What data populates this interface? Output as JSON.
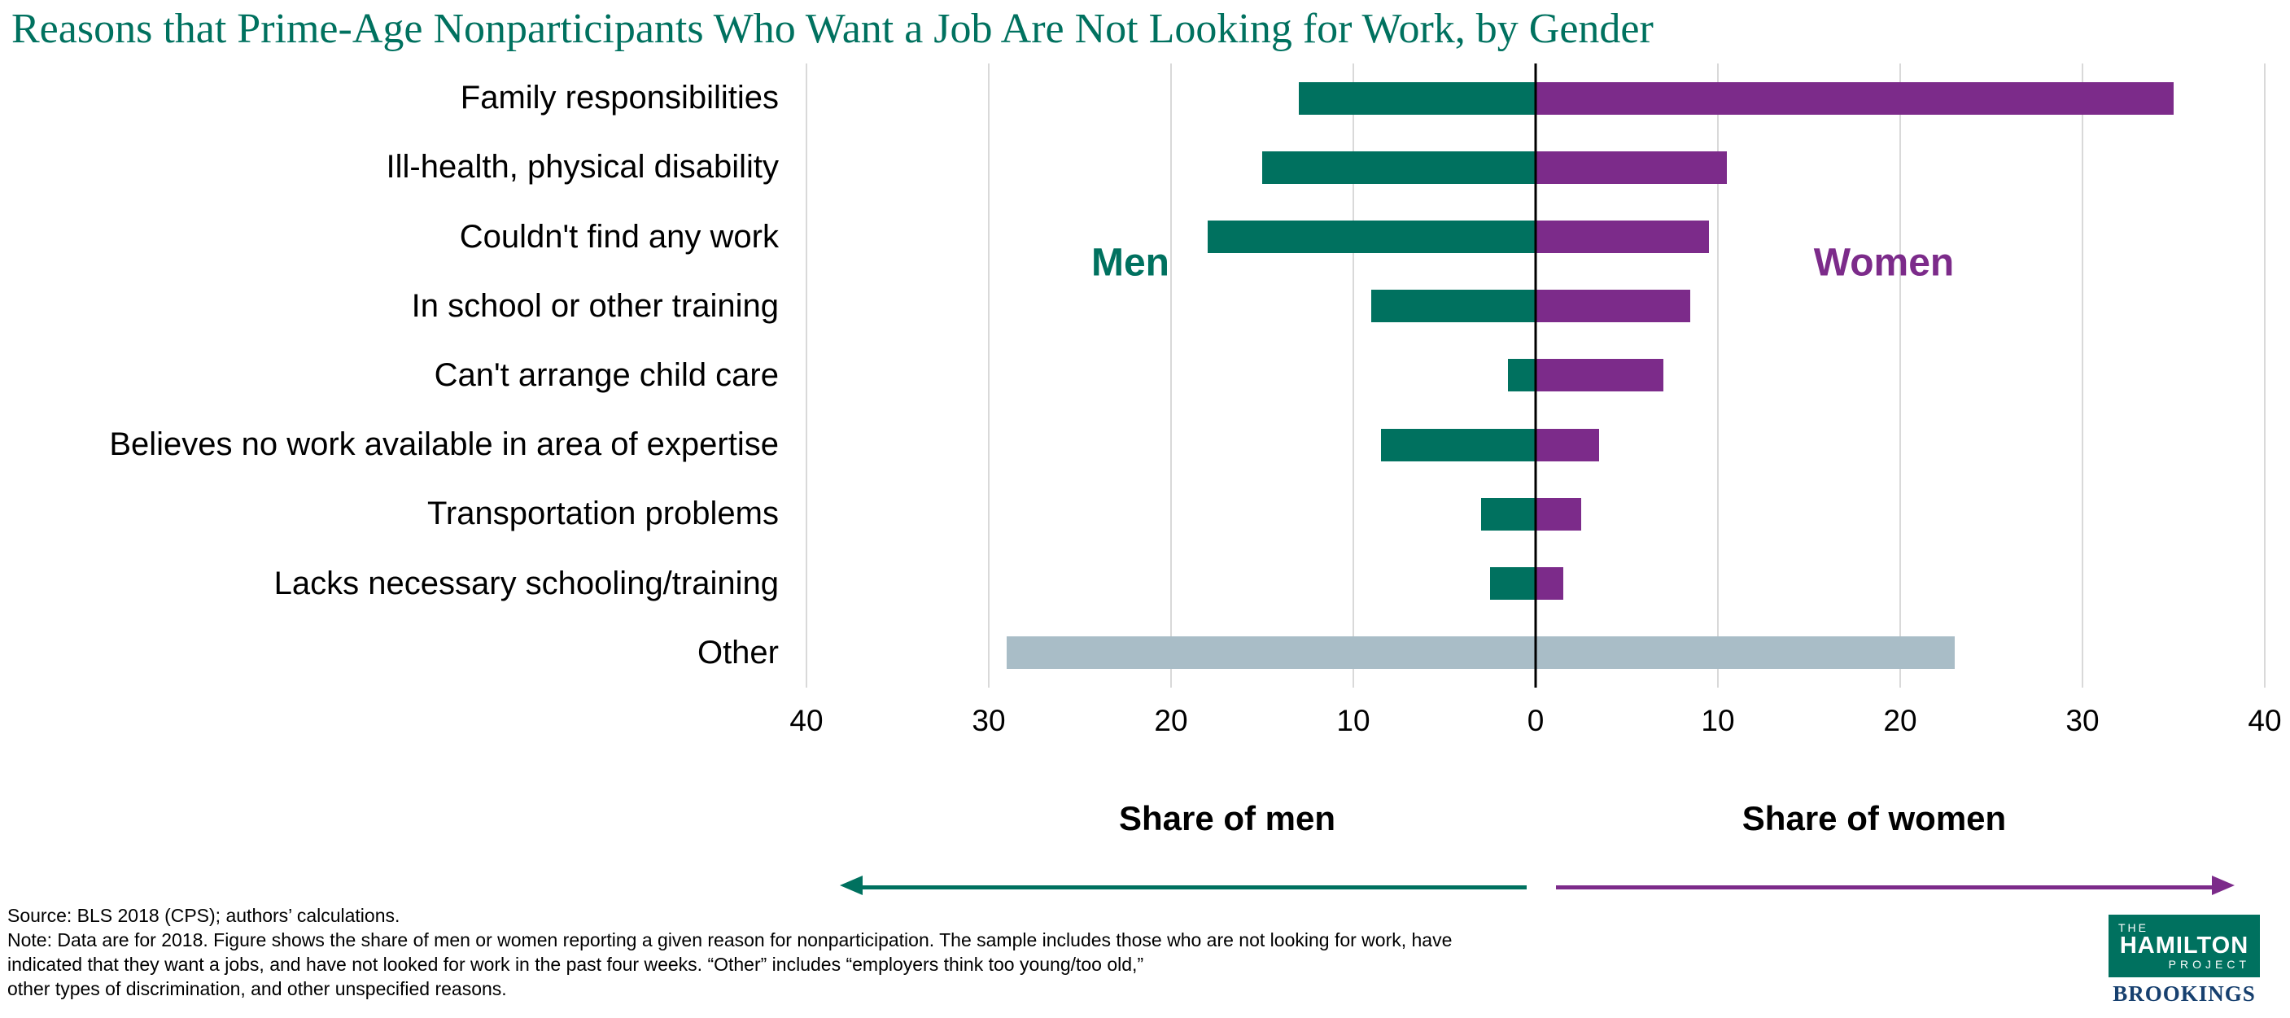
{
  "chart_data": {
    "type": "bar",
    "variant": "diverging-horizontal",
    "title": "Reasons that Prime-Age Nonparticipants Who Want a Job Are Not Looking for Work, by Gender",
    "categories": [
      "Family responsibilities",
      "Ill-health, physical disability",
      "Couldn't find any work",
      "In school or other training",
      "Can't arrange child care",
      "Believes no work available in area of expertise",
      "Transportation problems",
      "Lacks necessary schooling/training",
      "Other"
    ],
    "series": [
      {
        "name": "Men",
        "side": "left",
        "color": "#00715F",
        "values": [
          13,
          15,
          18,
          9,
          1.5,
          8.5,
          3,
          2.5,
          29
        ]
      },
      {
        "name": "Women",
        "side": "right",
        "color": "#7C2B8A",
        "values": [
          35,
          10.5,
          9.5,
          8.5,
          7,
          3.5,
          2.5,
          1.5,
          23
        ]
      }
    ],
    "other_category": {
      "index": 8,
      "color": "#A9BDC7",
      "note": "single gray bar spanning both sides (men 29 to women 23)"
    },
    "x_axis": {
      "ticks": [
        40,
        30,
        20,
        10,
        0,
        10,
        20,
        30,
        40
      ],
      "max_each_side": 40,
      "left_label": "Share of men",
      "right_label": "Share of women"
    },
    "gridlines": true,
    "zero_line_color": "#000000"
  },
  "footnotes": {
    "lines": [
      "Source: BLS 2018 (CPS); authors’ calculations.",
      "Note: Data are for 2018. Figure shows the share of men or women reporting a given reason for nonparticipation. The sample includes those who are not looking for work, have",
      "indicated that they want a jobs, and have not looked for work in the past four weeks. “Other” includes “employers think too young/too old,”",
      "other types of discrimination, and other unspecified reasons."
    ]
  },
  "logo": {
    "the": "THE",
    "hamilton": "HAMILTON",
    "project": "PROJECT",
    "brookings": "BROOKINGS"
  },
  "colors": {
    "teal": "#00715F",
    "purple": "#7C2B8A",
    "other_gray": "#A9BDC7",
    "brookings_navy": "#17406F",
    "gridline_gray": "#D9D9D9"
  }
}
